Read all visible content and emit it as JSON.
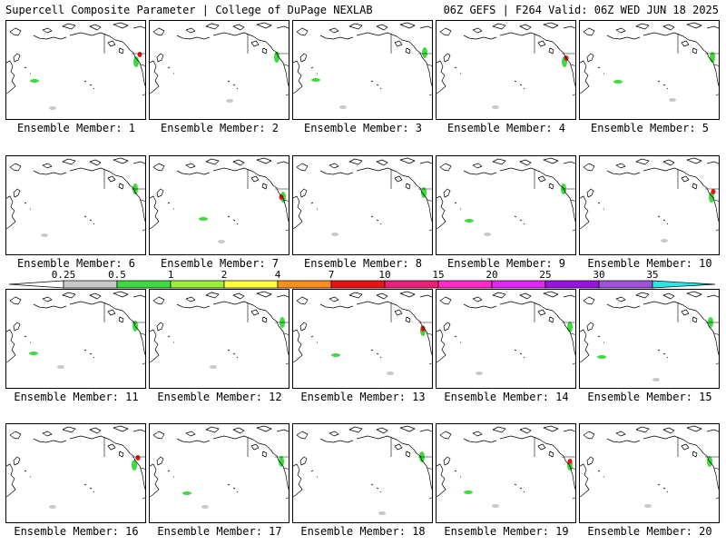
{
  "header": {
    "left": "Supercell Composite Parameter | College of DuPage NEXLAB",
    "right": "06Z GEFS | F264 Valid: 06Z WED JUN 18 2025"
  },
  "member_label_prefix": "Ensemble Member:",
  "members": [
    {
      "id": 1,
      "label": "Ensemble Member: 1"
    },
    {
      "id": 2,
      "label": "Ensemble Member: 2"
    },
    {
      "id": 3,
      "label": "Ensemble Member: 3"
    },
    {
      "id": 4,
      "label": "Ensemble Member: 4"
    },
    {
      "id": 5,
      "label": "Ensemble Member: 5"
    },
    {
      "id": 6,
      "label": "Ensemble Member: 6"
    },
    {
      "id": 7,
      "label": "Ensemble Member: 7"
    },
    {
      "id": 8,
      "label": "Ensemble Member: 8"
    },
    {
      "id": 9,
      "label": "Ensemble Member: 9"
    },
    {
      "id": 10,
      "label": "Ensemble Member: 10"
    },
    {
      "id": 11,
      "label": "Ensemble Member: 11"
    },
    {
      "id": 12,
      "label": "Ensemble Member: 12"
    },
    {
      "id": 13,
      "label": "Ensemble Member: 13"
    },
    {
      "id": 14,
      "label": "Ensemble Member: 14"
    },
    {
      "id": 15,
      "label": "Ensemble Member: 15"
    },
    {
      "id": 16,
      "label": "Ensemble Member: 16"
    },
    {
      "id": 17,
      "label": "Ensemble Member: 17"
    },
    {
      "id": 18,
      "label": "Ensemble Member: 18"
    },
    {
      "id": 19,
      "label": "Ensemble Member: 19"
    },
    {
      "id": 20,
      "label": "Ensemble Member: 20"
    }
  ],
  "colorbar": {
    "ticks": [
      "0.25",
      "0.5",
      "1",
      "2",
      "4",
      "7",
      "10",
      "15",
      "20",
      "25",
      "30",
      "35"
    ],
    "colors": [
      "#ffffff",
      "#c8c8c8",
      "#3cdc3c",
      "#9bef3c",
      "#ffff3c",
      "#ff8c1e",
      "#e61414",
      "#eb1e78",
      "#ff28c8",
      "#dc28f0",
      "#9b14dc",
      "#a050dc",
      "#28e6e6"
    ]
  }
}
